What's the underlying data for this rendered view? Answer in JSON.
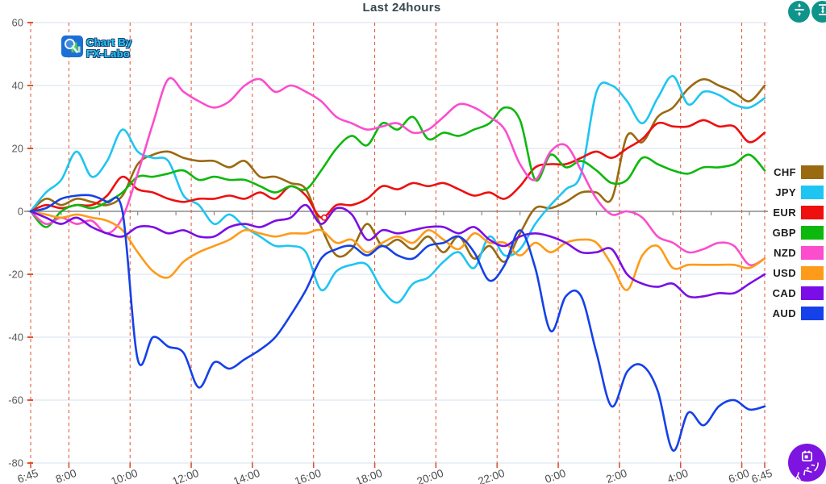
{
  "title": "Last 24hours",
  "watermark": {
    "line1": "Chart By",
    "line2": "FX-Labo"
  },
  "toolbar": {
    "collapse_vertical_color": "#0f948b",
    "expand_vertical_color": "#0f948b"
  },
  "event_button": {
    "label": "イベン",
    "color": "#7d14e0"
  },
  "legend": {
    "position": "right",
    "items": [
      {
        "label": "CHF",
        "color": "#9a6a10"
      },
      {
        "label": "JPY",
        "color": "#1ec5f2"
      },
      {
        "label": "EUR",
        "color": "#ee0f0f"
      },
      {
        "label": "GBP",
        "color": "#0db80d"
      },
      {
        "label": "NZD",
        "color": "#fb4dcd"
      },
      {
        "label": "USD",
        "color": "#fe9b19"
      },
      {
        "label": "CAD",
        "color": "#7b0de6"
      },
      {
        "label": "AUD",
        "color": "#1541e8"
      }
    ]
  },
  "chart_data": {
    "type": "line",
    "title": "Last 24hours",
    "xlabel": "",
    "ylabel": "",
    "x_start_time": "6:45",
    "x_end_time": "6:45",
    "sample_interval_hours": 0.5,
    "ylim": [
      -80,
      60
    ],
    "y_ticks": [
      60,
      40,
      20,
      0,
      -20,
      -40,
      -60,
      -80
    ],
    "x_ticks": [
      {
        "hours": 0,
        "label": "6:45"
      },
      {
        "hours": 1.25,
        "label": "8:00"
      },
      {
        "hours": 3.25,
        "label": "10:00"
      },
      {
        "hours": 5.25,
        "label": "12:00"
      },
      {
        "hours": 7.25,
        "label": "14:00"
      },
      {
        "hours": 9.25,
        "label": "16:00"
      },
      {
        "hours": 11.25,
        "label": "18:00"
      },
      {
        "hours": 13.25,
        "label": "20:00"
      },
      {
        "hours": 15.25,
        "label": "22:00"
      },
      {
        "hours": 17.25,
        "label": "0:00"
      },
      {
        "hours": 19.25,
        "label": "2:00"
      },
      {
        "hours": 21.25,
        "label": "4:00"
      },
      {
        "hours": 23.25,
        "label": "6:00"
      },
      {
        "hours": 24,
        "label": "6:45"
      }
    ],
    "grid": {
      "v_color": "#e2502e",
      "h_color": "#dde7f3",
      "zero_color": "#8a8a8a"
    },
    "legend_position": "right",
    "marker": {
      "series": "EUR",
      "hours": 9.6,
      "value": -2
    },
    "series": [
      {
        "name": "CHF",
        "color": "#9a6a10",
        "values": [
          0,
          4,
          2,
          4,
          3,
          2,
          5,
          15,
          18,
          19,
          17,
          16,
          16,
          14,
          16,
          11,
          11,
          9,
          7,
          -5,
          -14,
          -12,
          -4,
          -11,
          -9,
          -12,
          -8,
          -13,
          -8,
          -15,
          -11,
          -16,
          -7,
          1,
          1,
          3,
          6,
          6,
          4,
          24,
          22,
          30,
          33,
          39,
          42,
          40,
          38,
          35,
          40
        ]
      },
      {
        "name": "JPY",
        "color": "#1ec5f2",
        "values": [
          0,
          6,
          10,
          19,
          11,
          16,
          26,
          19,
          17,
          16,
          5,
          2,
          -4,
          -1,
          -5,
          -8,
          -11,
          -11,
          -13,
          -25,
          -19,
          -17,
          -17,
          -25,
          -29,
          -23,
          -21,
          -16,
          -13,
          -18,
          -8,
          -14,
          -12,
          -4,
          2,
          7,
          12,
          38,
          40,
          35,
          28,
          36,
          43,
          34,
          38,
          37,
          34,
          33,
          36
        ]
      },
      {
        "name": "EUR",
        "color": "#ee0f0f",
        "values": [
          0,
          2,
          1,
          2,
          2,
          5,
          11,
          7,
          6,
          4,
          3,
          4,
          4,
          5,
          4,
          6,
          4,
          8,
          5,
          -2,
          2,
          2,
          4,
          8,
          7,
          9,
          8,
          9,
          7,
          5,
          6,
          4,
          8,
          14,
          15,
          15,
          17,
          19,
          17,
          20,
          23,
          28,
          27,
          27,
          29,
          27,
          27,
          22,
          25
        ]
      },
      {
        "name": "GBP",
        "color": "#0db80d",
        "values": [
          0,
          -5,
          0,
          2,
          1,
          3,
          6,
          11,
          11,
          12,
          13,
          10,
          11,
          10,
          10,
          8,
          6,
          8,
          7,
          13,
          20,
          24,
          21,
          28,
          26,
          30,
          23,
          25,
          24,
          26,
          28,
          33,
          29,
          10,
          18,
          14,
          16,
          13,
          9,
          10,
          17,
          15,
          13,
          12,
          14,
          14,
          15,
          18,
          13
        ]
      },
      {
        "name": "NZD",
        "color": "#fb4dcd",
        "values": [
          0,
          -4,
          -2,
          -4,
          -3,
          -7,
          -2,
          12,
          28,
          42,
          38,
          35,
          33,
          35,
          40,
          42,
          38,
          40,
          38,
          35,
          30,
          28,
          26,
          27,
          28,
          25,
          26,
          30,
          34,
          33,
          30,
          26,
          15,
          10,
          19,
          21,
          13,
          4,
          -1,
          0,
          -2,
          -8,
          -10,
          -13,
          -12,
          -10,
          -11,
          -17,
          -15
        ]
      },
      {
        "name": "USD",
        "color": "#fe9b19",
        "values": [
          0,
          -1,
          -2,
          -1,
          -2,
          -3,
          -6,
          -13,
          -19,
          -21,
          -16,
          -13,
          -11,
          -9,
          -6,
          -7,
          -8,
          -7,
          -7,
          -6,
          -10,
          -9,
          -13,
          -10,
          -8,
          -10,
          -6,
          -9,
          -12,
          -7,
          -10,
          -10,
          -14,
          -10,
          -13,
          -10,
          -9,
          -10,
          -17,
          -25,
          -14,
          -11,
          -18,
          -17,
          -17,
          -17,
          -17,
          -18,
          -15
        ]
      },
      {
        "name": "CAD",
        "color": "#7b0de6",
        "values": [
          0,
          -2,
          -4,
          -2,
          -5,
          -7,
          -8,
          -5,
          -5,
          -7,
          -6,
          -8,
          -8,
          -5,
          -4,
          -5,
          -3,
          -2,
          2,
          -4,
          1,
          -1,
          -9,
          -6,
          -7,
          -6,
          -5,
          -5,
          -7,
          -5,
          -9,
          -11,
          -8,
          -7,
          -8,
          -10,
          -13,
          -13,
          -12,
          -20,
          -23,
          -24,
          -23,
          -27,
          -27,
          -26,
          -26,
          -23,
          -20
        ]
      },
      {
        "name": "AUD",
        "color": "#1541e8",
        "values": [
          0,
          1,
          4,
          5,
          5,
          3,
          0,
          -47,
          -40,
          -43,
          -45,
          -56,
          -48,
          -50,
          -47,
          -44,
          -40,
          -33,
          -25,
          -15,
          -12,
          -11,
          -14,
          -11,
          -14,
          -15,
          -11,
          -10,
          -8,
          -13,
          -22,
          -17,
          -6,
          -18,
          -38,
          -27,
          -27,
          -45,
          -62,
          -51,
          -49,
          -57,
          -76,
          -64,
          -68,
          -62,
          -60,
          -63,
          -62
        ]
      }
    ]
  }
}
